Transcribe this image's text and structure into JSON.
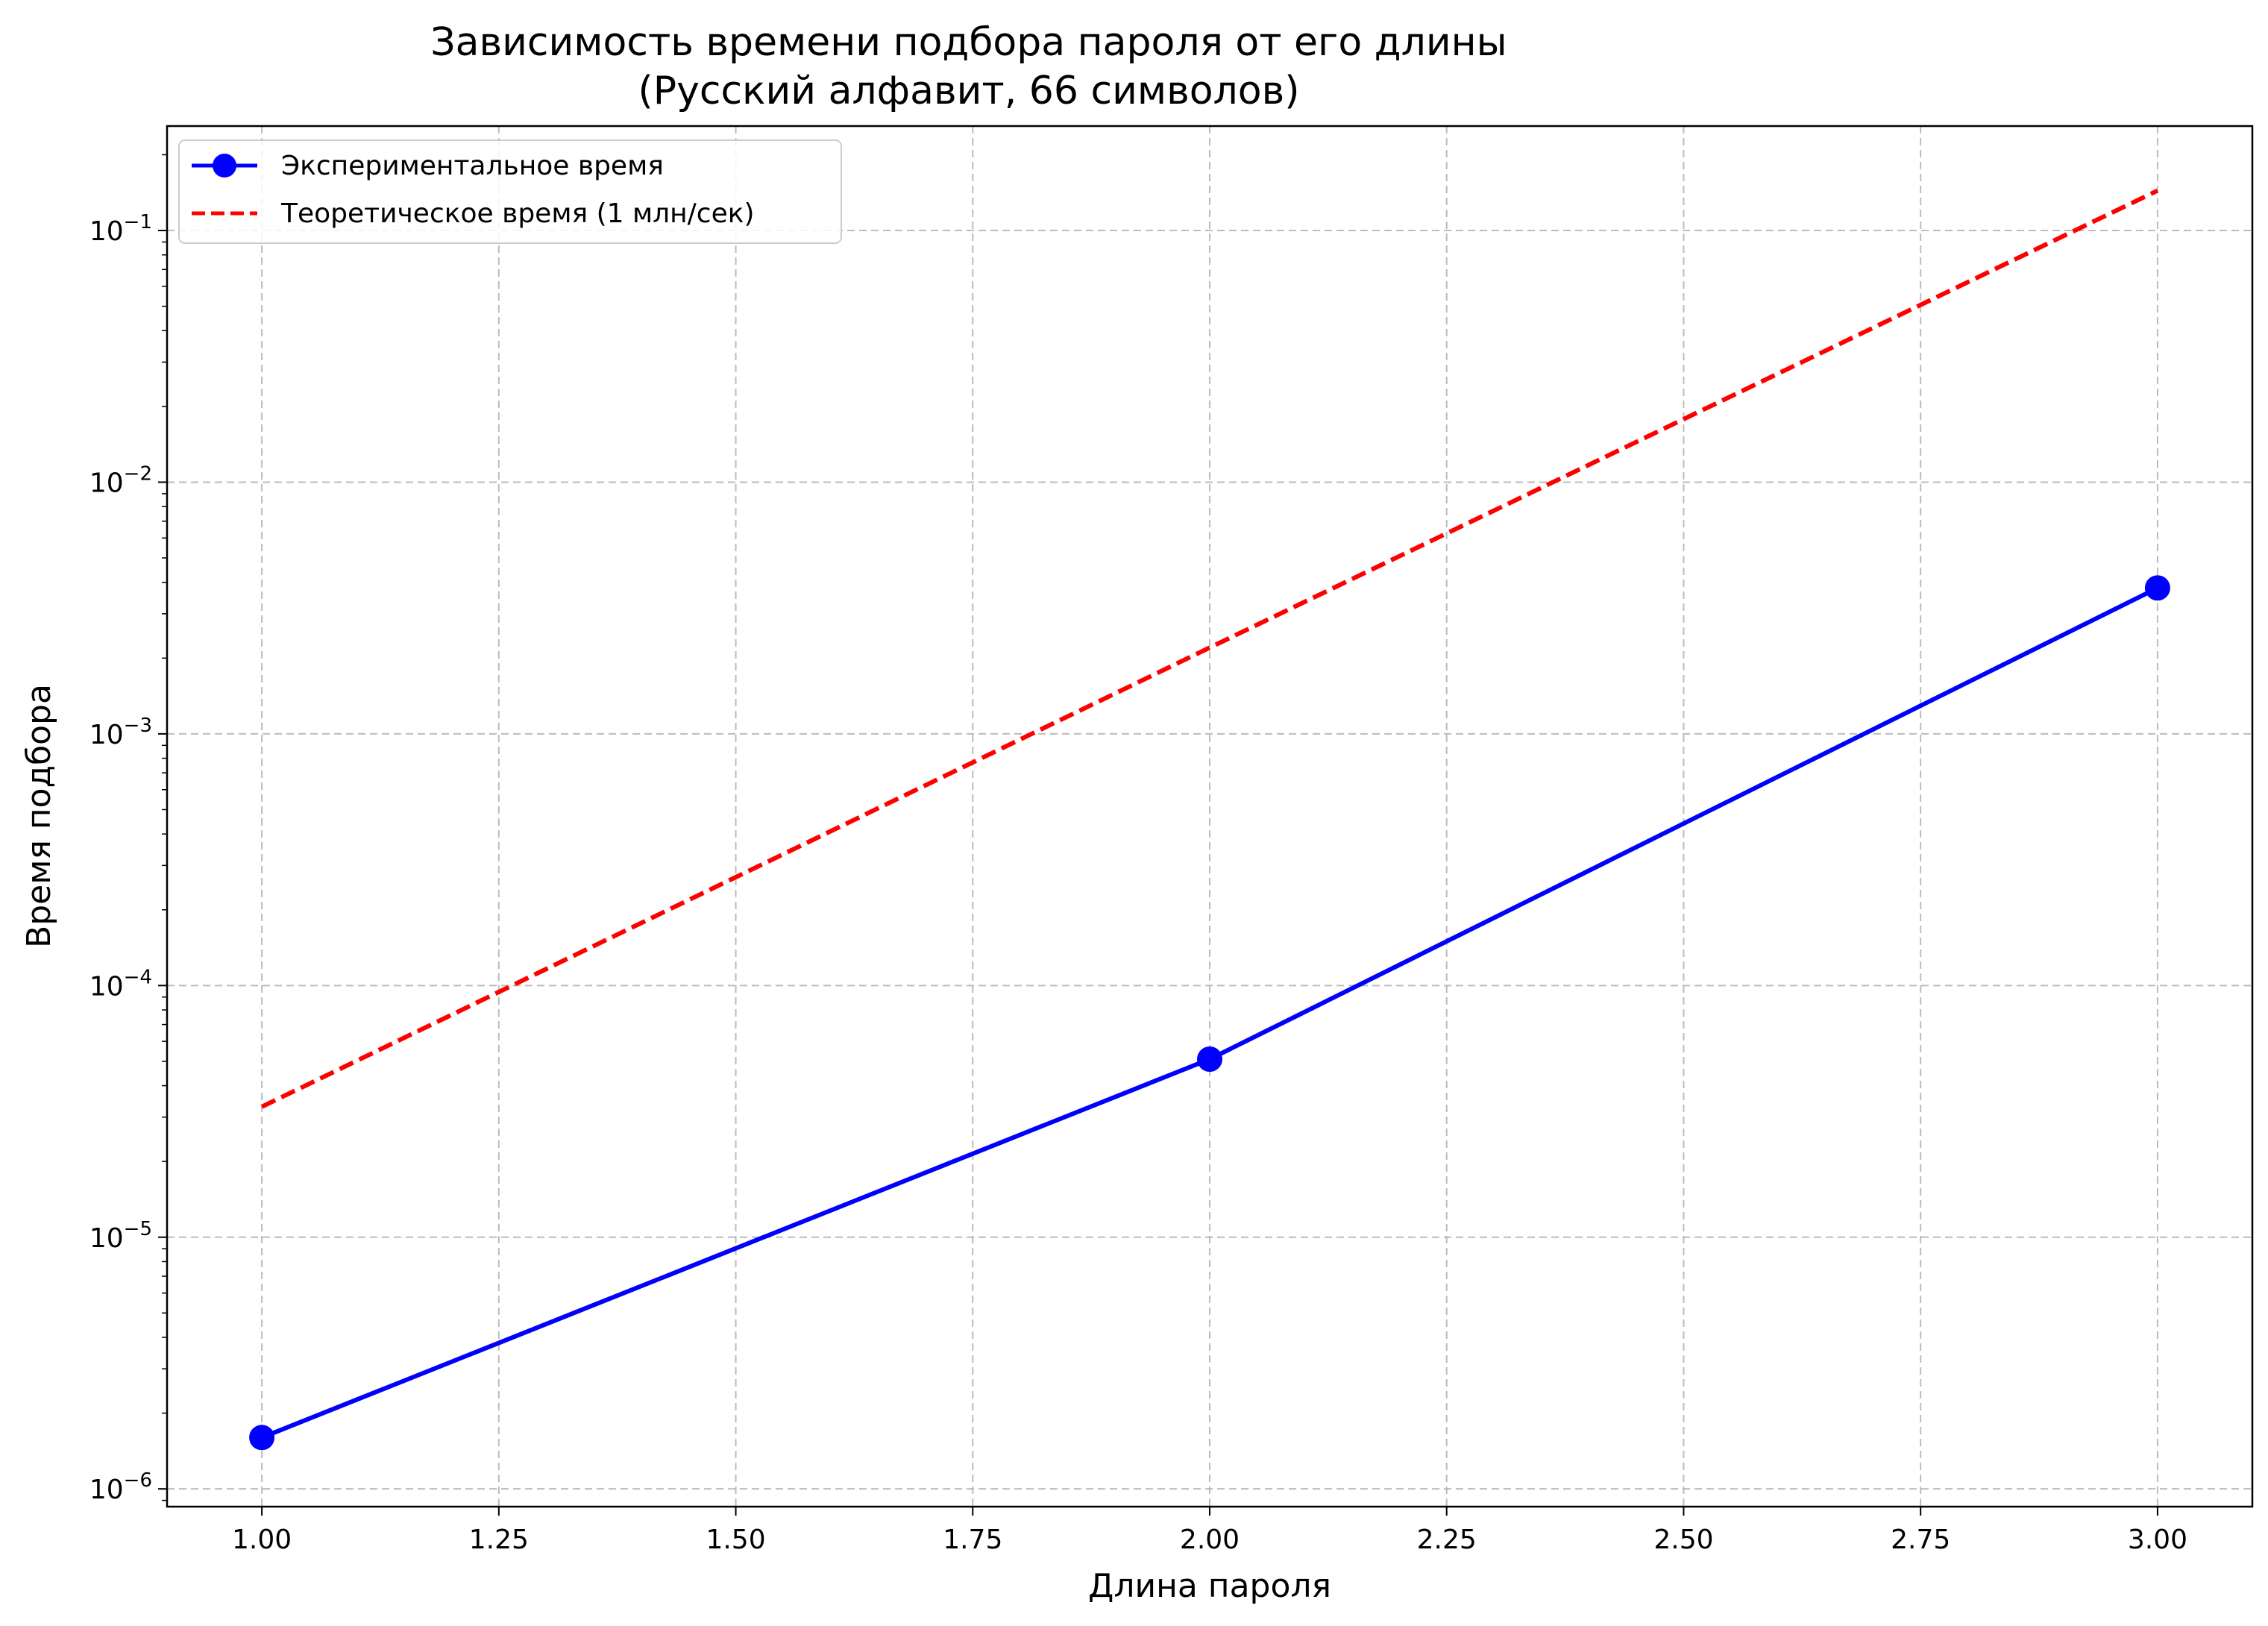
{
  "chart_data": {
    "type": "line",
    "title": "Зависимость времени подбора пароля от его длины",
    "subtitle": "(Русский алфавит, 66 символов)",
    "xlabel": "Длина пароля",
    "ylabel": "Время подбора",
    "xlim": [
      0.9,
      3.1
    ],
    "ylim": [
      8.5e-07,
      0.26
    ],
    "yscale": "log",
    "grid": true,
    "legend_position": "top-left",
    "x_ticks": [
      1.0,
      1.25,
      1.5,
      1.75,
      2.0,
      2.25,
      2.5,
      2.75,
      3.0
    ],
    "x_tick_labels": [
      "1.00",
      "1.25",
      "1.50",
      "1.75",
      "2.00",
      "2.25",
      "2.50",
      "2.75",
      "3.00"
    ],
    "y_ticks": [
      1e-06,
      1e-05,
      0.0001,
      0.001,
      0.01,
      0.1
    ],
    "y_tick_labels": [
      {
        "base": "10",
        "exp": "−6"
      },
      {
        "base": "10",
        "exp": "−5"
      },
      {
        "base": "10",
        "exp": "−4"
      },
      {
        "base": "10",
        "exp": "−3"
      },
      {
        "base": "10",
        "exp": "−2"
      },
      {
        "base": "10",
        "exp": "−1"
      }
    ],
    "series": [
      {
        "name": "Экспериментальное время",
        "x": [
          1,
          2,
          3
        ],
        "y": [
          1.6e-06,
          5.1e-05,
          0.0038
        ],
        "color": "#0000ff",
        "line_style": "solid",
        "marker": "circle"
      },
      {
        "name": "Теоретическое время (1 млн/сек)",
        "x": [
          1,
          2,
          3
        ],
        "y": [
          3.3e-05,
          0.0022,
          0.144
        ],
        "color": "#ff0000",
        "line_style": "dashed",
        "marker": "none"
      }
    ]
  }
}
